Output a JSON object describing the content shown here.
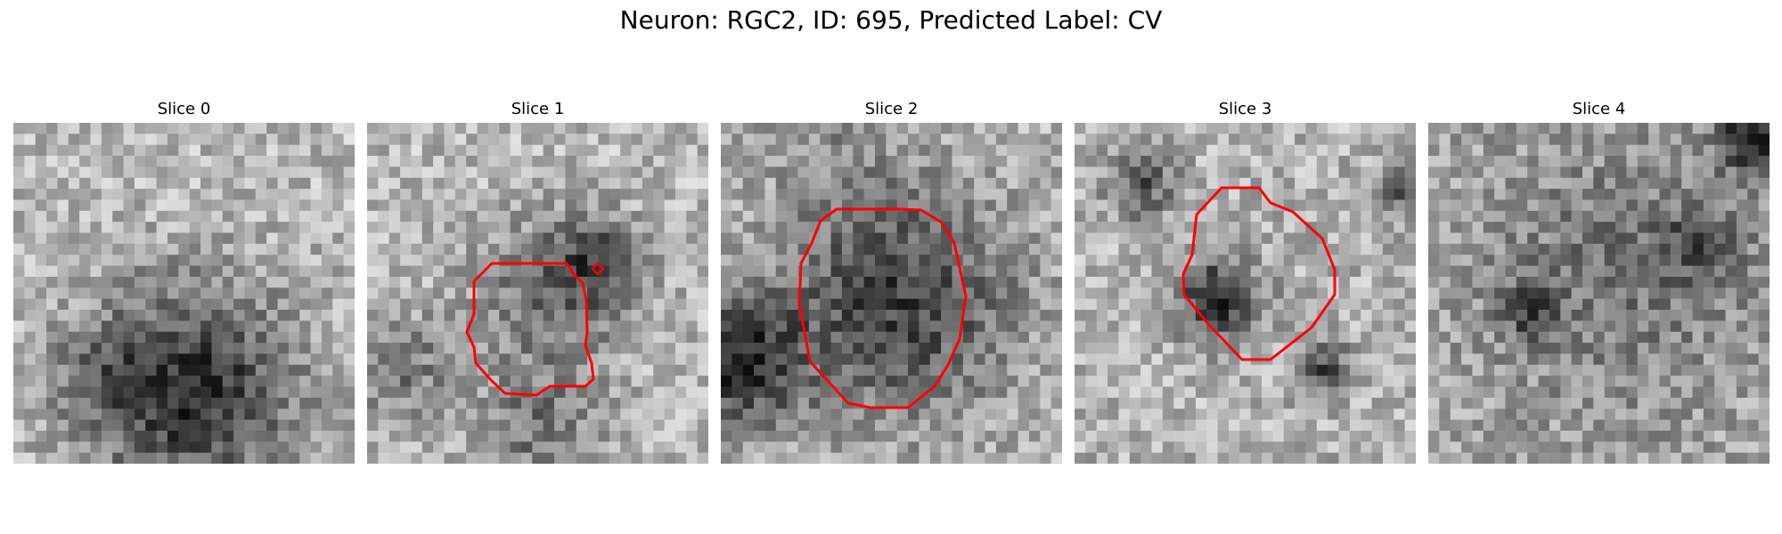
{
  "figure": {
    "title": "Neuron: RGC2, ID: 695, Predicted Label: CV"
  },
  "panels": [
    {
      "title": "Slice 0",
      "outline_color": "",
      "has_outline": false,
      "seed": 11
    },
    {
      "title": "Slice 1",
      "outline_color": "#ff0000",
      "has_outline": true,
      "seed": 23
    },
    {
      "title": "Slice 2",
      "outline_color": "#ff0000",
      "has_outline": true,
      "seed": 37
    },
    {
      "title": "Slice 3",
      "outline_color": "#ff0000",
      "has_outline": true,
      "seed": 51
    },
    {
      "title": "Slice 4",
      "outline_color": "",
      "has_outline": false,
      "seed": 67
    }
  ]
}
